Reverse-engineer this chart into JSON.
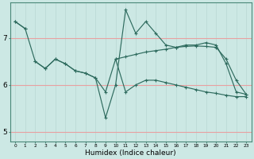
{
  "xlabel": "Humidex (Indice chaleur)",
  "bg_color": "#cce8e4",
  "line_color": "#2e6b5e",
  "hgrid_color": "#e8a0a0",
  "vgrid_color": "#b8d8d4",
  "series": [
    {
      "x": [
        0,
        1,
        2,
        3,
        4,
        5,
        6,
        7,
        8,
        9,
        10,
        11,
        12,
        13,
        14,
        15,
        16,
        17,
        18,
        19,
        20,
        21,
        22,
        23
      ],
      "y": [
        7.35,
        7.2,
        6.5,
        6.35,
        6.55,
        6.45,
        6.3,
        6.25,
        6.15,
        5.3,
        6.0,
        7.6,
        7.1,
        7.35,
        7.1,
        6.85,
        6.8,
        6.85,
        6.85,
        6.9,
        6.85,
        6.45,
        5.85,
        5.8
      ]
    },
    {
      "x": [
        0,
        1,
        2,
        3,
        4,
        5,
        6,
        7,
        8,
        9,
        10,
        11,
        12,
        13,
        14,
        15,
        16,
        17,
        18,
        19,
        20,
        21,
        22,
        23
      ],
      "y": [
        7.35,
        7.2,
        null,
        null,
        null,
        null,
        null,
        null,
        null,
        null,
        6.55,
        6.6,
        6.65,
        6.7,
        6.73,
        6.76,
        6.8,
        6.82,
        6.83,
        6.82,
        6.8,
        6.55,
        6.1,
        5.8
      ]
    },
    {
      "x": [
        2,
        3,
        4,
        5,
        6,
        7,
        8,
        9,
        10,
        11,
        12,
        13,
        14,
        15,
        16,
        17,
        18,
        19,
        20,
        21,
        22,
        23
      ],
      "y": [
        6.5,
        6.35,
        6.55,
        6.45,
        6.3,
        6.25,
        6.15,
        5.85,
        6.55,
        5.85,
        6.0,
        6.1,
        6.1,
        6.05,
        6.0,
        5.95,
        5.9,
        5.85,
        5.82,
        5.78,
        5.75,
        5.75
      ]
    }
  ],
  "yticks": [
    5,
    6,
    7
  ],
  "xticks": [
    0,
    1,
    2,
    3,
    4,
    5,
    6,
    7,
    8,
    9,
    10,
    11,
    12,
    13,
    14,
    15,
    16,
    17,
    18,
    19,
    20,
    21,
    22,
    23
  ],
  "xlim": [
    -0.5,
    23.5
  ],
  "ylim": [
    4.8,
    7.75
  ]
}
